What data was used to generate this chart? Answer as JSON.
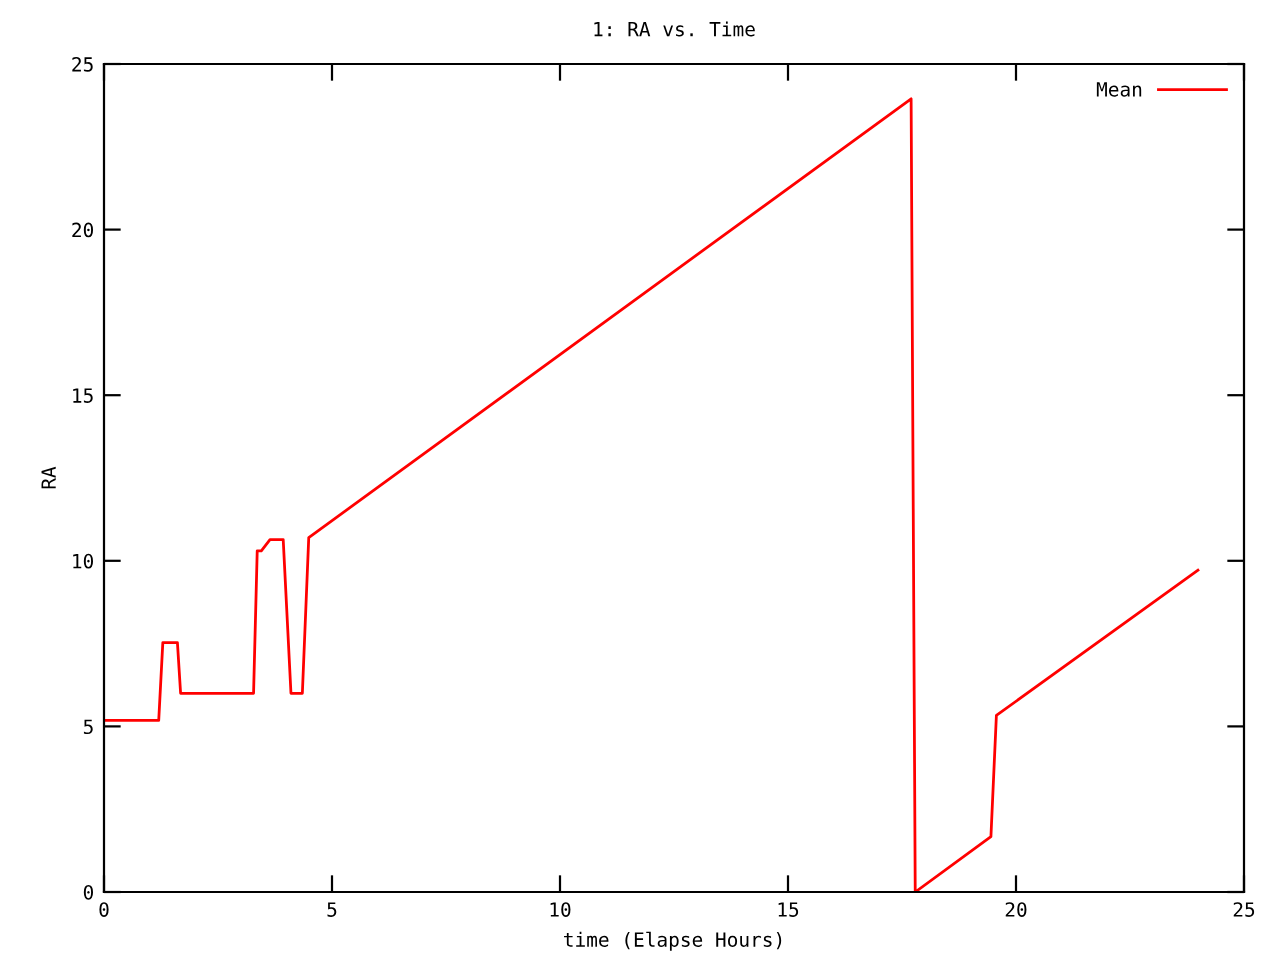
{
  "chart_data": {
    "type": "line",
    "title": "1: RA vs. Time",
    "xlabel": "time (Elapse Hours)",
    "ylabel": "RA",
    "series": [
      {
        "name": "Mean",
        "color": "#ff0000",
        "x": [
          0,
          1.2,
          1.29,
          1.61,
          1.68,
          3.28,
          3.36,
          3.45,
          3.64,
          3.93,
          4.1,
          4.35,
          4.49,
          17.7,
          17.79,
          19.45,
          19.57,
          23.99
        ],
        "values": [
          5.18,
          5.18,
          7.53,
          7.53,
          6.0,
          6.0,
          10.3,
          10.3,
          10.64,
          10.64,
          6.0,
          6.0,
          10.7,
          23.95,
          0,
          1.67,
          5.33,
          9.72
        ]
      }
    ],
    "xlim": [
      0,
      25
    ],
    "xticks": [
      0,
      5,
      10,
      15,
      20,
      25
    ],
    "ylim": [
      0,
      25
    ],
    "yticks": [
      0,
      5,
      10,
      15,
      20,
      25
    ],
    "grid": false,
    "legend": "top right",
    "marker": "none",
    "line_style": "solid"
  }
}
